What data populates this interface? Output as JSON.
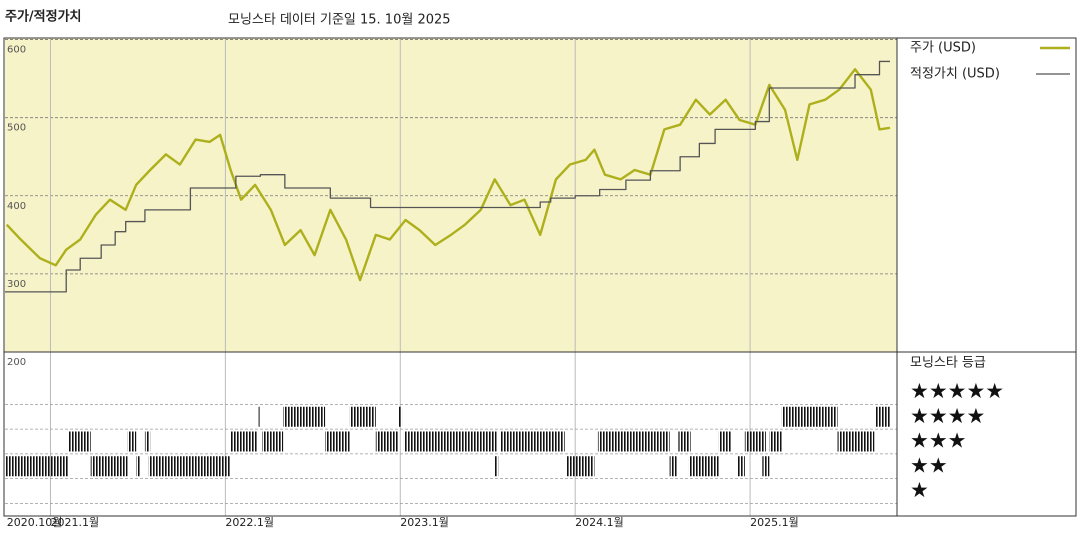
{
  "header": {
    "title": "주가/적정가치",
    "subtitle": "모닝스타 데이터 기준일 15. 10월 2025"
  },
  "chart_data": {
    "type": "line",
    "xlim": [
      2020.74,
      2025.84
    ],
    "xticks": [
      {
        "value": 2020.75,
        "label": "2020.10월"
      },
      {
        "value": 2021,
        "label": "2021.1월"
      },
      {
        "value": 2022,
        "label": "2022.1월"
      },
      {
        "value": 2023,
        "label": "2023.1월"
      },
      {
        "value": 2024,
        "label": "2024.1월"
      },
      {
        "value": 2025,
        "label": "2025.1월"
      }
    ],
    "ylim": [
      200,
      602
    ],
    "yticks": [
      200,
      300,
      400,
      500,
      600
    ],
    "grid": true,
    "background": "#f7f3c9",
    "series": [
      {
        "name": "주가 (USD)",
        "color": "#adb01c",
        "x": [
          2020.75,
          2020.83,
          2020.94,
          2021.03,
          2021.09,
          2021.17,
          2021.26,
          2021.34,
          2021.43,
          2021.49,
          2021.57,
          2021.66,
          2021.74,
          2021.83,
          2021.91,
          2021.97,
          2022.03,
          2022.09,
          2022.17,
          2022.26,
          2022.34,
          2022.43,
          2022.51,
          2022.6,
          2022.69,
          2022.77,
          2022.86,
          2022.94,
          2023.03,
          2023.11,
          2023.2,
          2023.29,
          2023.37,
          2023.46,
          2023.54,
          2023.63,
          2023.71,
          2023.8,
          2023.89,
          2023.97,
          2024.06,
          2024.11,
          2024.17,
          2024.26,
          2024.34,
          2024.43,
          2024.51,
          2024.6,
          2024.69,
          2024.77,
          2024.86,
          2024.94,
          2025.03,
          2025.11,
          2025.2,
          2025.27,
          2025.34,
          2025.43,
          2025.51,
          2025.6,
          2025.69,
          2025.74,
          2025.8
        ],
        "values": [
          363,
          344,
          320,
          311,
          331,
          344,
          376,
          395,
          382,
          414,
          433,
          453,
          440,
          472,
          469,
          478,
          433,
          395,
          414,
          382,
          337,
          356,
          324,
          382,
          344,
          292,
          350,
          344,
          369,
          356,
          337,
          350,
          363,
          382,
          421,
          388,
          395,
          350,
          421,
          440,
          446,
          459,
          427,
          421,
          433,
          427,
          485,
          491,
          523,
          504,
          523,
          497,
          491,
          542,
          510,
          446,
          517,
          523,
          536,
          562,
          536,
          485,
          487
        ]
      },
      {
        "name": "적정가치 (USD)",
        "color": "#555555",
        "style": "step",
        "x": [
          2020.74,
          2021.09,
          2021.17,
          2021.29,
          2021.37,
          2021.43,
          2021.54,
          2021.8,
          2022.06,
          2022.2,
          2022.34,
          2022.6,
          2022.83,
          2023.8,
          2023.86,
          2024.0,
          2024.14,
          2024.29,
          2024.43,
          2024.6,
          2024.71,
          2024.8,
          2025.03,
          2025.11,
          2025.6,
          2025.74,
          2025.8
        ],
        "values": [
          277,
          305,
          320,
          337,
          354,
          367,
          382,
          410,
          425,
          427,
          410,
          397,
          385,
          392,
          397,
          400,
          408,
          420,
          432,
          450,
          467,
          485,
          495,
          538,
          555,
          572,
          572
        ]
      }
    ],
    "ratings": {
      "title": "모닝스타 등급",
      "levels": [
        "★★★★★",
        "★★★★",
        "★★★",
        "★★",
        "★"
      ],
      "segments": [
        {
          "start": 2020.74,
          "end": 2021.1,
          "stars": 2
        },
        {
          "start": 2021.1,
          "end": 2021.23,
          "stars": 3
        },
        {
          "start": 2021.23,
          "end": 2021.44,
          "stars": 2
        },
        {
          "start": 2021.44,
          "end": 2021.49,
          "stars": 3
        },
        {
          "start": 2021.49,
          "end": 2021.51,
          "stars": 2
        },
        {
          "start": 2021.54,
          "end": 2021.57,
          "stars": 3
        },
        {
          "start": 2021.56,
          "end": 2022.03,
          "stars": 2
        },
        {
          "start": 2022.03,
          "end": 2022.18,
          "stars": 3
        },
        {
          "start": 2022.19,
          "end": 2022.2,
          "stars": 4
        },
        {
          "start": 2022.21,
          "end": 2022.33,
          "stars": 3
        },
        {
          "start": 2022.33,
          "end": 2022.57,
          "stars": 4
        },
        {
          "start": 2022.57,
          "end": 2022.71,
          "stars": 3
        },
        {
          "start": 2022.71,
          "end": 2022.86,
          "stars": 4
        },
        {
          "start": 2022.86,
          "end": 2022.99,
          "stars": 3
        },
        {
          "start": 2022.99,
          "end": 2023.01,
          "stars": 4
        },
        {
          "start": 2023.02,
          "end": 2023.55,
          "stars": 3
        },
        {
          "start": 2023.54,
          "end": 2023.56,
          "stars": 2
        },
        {
          "start": 2023.57,
          "end": 2023.94,
          "stars": 3
        },
        {
          "start": 2023.95,
          "end": 2024.11,
          "stars": 2
        },
        {
          "start": 2024.13,
          "end": 2024.54,
          "stars": 3
        },
        {
          "start": 2024.54,
          "end": 2024.58,
          "stars": 2
        },
        {
          "start": 2024.59,
          "end": 2024.66,
          "stars": 3
        },
        {
          "start": 2024.65,
          "end": 2024.82,
          "stars": 2
        },
        {
          "start": 2024.82,
          "end": 2024.89,
          "stars": 3
        },
        {
          "start": 2024.93,
          "end": 2024.97,
          "stars": 2
        },
        {
          "start": 2024.97,
          "end": 2025.09,
          "stars": 3
        },
        {
          "start": 2025.07,
          "end": 2025.11,
          "stars": 2
        },
        {
          "start": 2025.11,
          "end": 2025.18,
          "stars": 3
        },
        {
          "start": 2025.18,
          "end": 2025.5,
          "stars": 4
        },
        {
          "start": 2025.5,
          "end": 2025.71,
          "stars": 3
        },
        {
          "start": 2025.72,
          "end": 2025.8,
          "stars": 4
        }
      ]
    }
  }
}
